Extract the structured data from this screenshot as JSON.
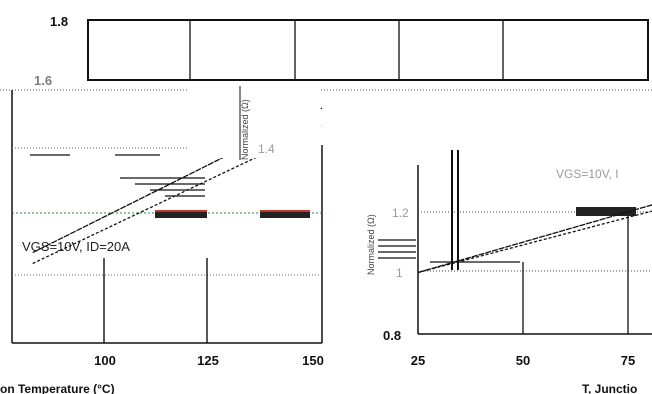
{
  "chart_data": [
    {
      "type": "line",
      "panel": "top-back",
      "y_ticks": [
        "1.8",
        "1.6"
      ],
      "ylim": [
        1.6,
        1.8
      ],
      "grid": true
    },
    {
      "type": "line",
      "panel": "left",
      "x_ticks": [
        "100",
        "125",
        "150"
      ],
      "xlim": [
        75,
        150
      ],
      "xlabel": "on Temperature (°C)",
      "annotation": "VGS=10V, ID=20A",
      "inset_label": "Normalized (Ω)",
      "inset_tick": "1.4",
      "series": [
        {
          "x": [
            80,
            150
          ],
          "y": [
            1.15,
            1.55
          ]
        },
        {
          "x": [
            80,
            150
          ],
          "y": [
            1.12,
            1.5
          ]
        }
      ],
      "grid": true
    },
    {
      "type": "line",
      "panel": "right",
      "x_ticks": [
        "25",
        "50",
        "75"
      ],
      "y_ticks": [
        "1.2",
        "1",
        "0.8"
      ],
      "xlim": [
        25,
        80
      ],
      "ylim": [
        0.8,
        1.6
      ],
      "xlabel": "T, Junctio",
      "ylabel": "Normalized (Ω)",
      "annotation": "VGS=10V, I",
      "series": [
        {
          "x": [
            25,
            80
          ],
          "y": [
            1.0,
            1.22
          ]
        },
        {
          "x": [
            25,
            80
          ],
          "y": [
            1.0,
            1.2
          ]
        }
      ],
      "grid": true
    }
  ]
}
